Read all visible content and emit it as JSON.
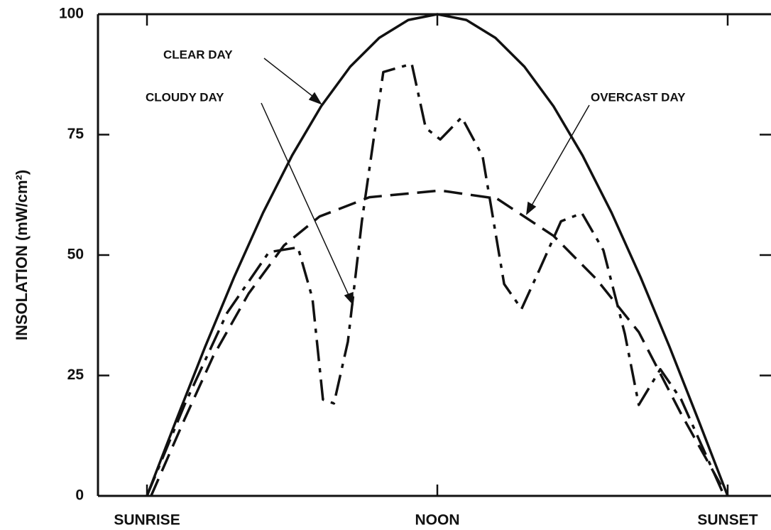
{
  "chart_data": {
    "type": "line",
    "ylabel": "INSOLATION (mW/cm²)",
    "xlim": [
      -0.0844,
      1.0746
    ],
    "ylim": [
      0,
      100
    ],
    "xticks": [
      {
        "value": 0,
        "label": "SUNRISE"
      },
      {
        "value": 0.5,
        "label": "NOON"
      },
      {
        "value": 1,
        "label": "SUNSET"
      }
    ],
    "yticks": [
      0,
      25,
      50,
      75,
      100
    ],
    "series": [
      {
        "name": "CLEAR DAY",
        "color": "#111111",
        "style": "solid",
        "x": [
          0,
          0.05,
          0.1,
          0.15,
          0.2,
          0.25,
          0.3,
          0.35,
          0.4,
          0.45,
          0.5,
          0.55,
          0.6,
          0.65,
          0.7,
          0.75,
          0.8,
          0.85,
          0.9,
          0.95,
          1
        ],
        "values": [
          0,
          15.6,
          30.9,
          45.4,
          58.8,
          70.7,
          80.9,
          89.1,
          95.1,
          98.8,
          100,
          98.8,
          95.1,
          89.1,
          80.9,
          70.7,
          58.8,
          45.4,
          30.9,
          15.6,
          0
        ]
      },
      {
        "name": "CLOUDY DAY",
        "color": "#111111",
        "style": "dashdot",
        "x": [
          0,
          0.065,
          0.138,
          0.21,
          0.26,
          0.285,
          0.303,
          0.322,
          0.346,
          0.37,
          0.407,
          0.456,
          0.48,
          0.505,
          0.542,
          0.578,
          0.615,
          0.645,
          0.676,
          0.713,
          0.749,
          0.786,
          0.823,
          0.847,
          0.884,
          0.92,
          0.957,
          0.994
        ],
        "values": [
          0,
          19,
          38,
          50.6,
          51.6,
          41,
          20,
          19.2,
          32,
          57,
          88,
          89.7,
          76.4,
          74,
          78.6,
          70.5,
          44,
          38.8,
          47,
          57,
          58.7,
          51,
          33.6,
          18.9,
          26.3,
          20,
          10,
          0
        ]
      },
      {
        "name": "OVERCAST DAY",
        "color": "#111111",
        "style": "dash",
        "x": [
          0.007,
          0.065,
          0.114,
          0.175,
          0.236,
          0.297,
          0.383,
          0.505,
          0.603,
          0.7,
          0.774,
          0.847,
          0.92,
          0.994
        ],
        "values": [
          0,
          16,
          29,
          42,
          52,
          58,
          62,
          63.4,
          61.7,
          54,
          45,
          34,
          17,
          1
        ]
      }
    ]
  }
}
